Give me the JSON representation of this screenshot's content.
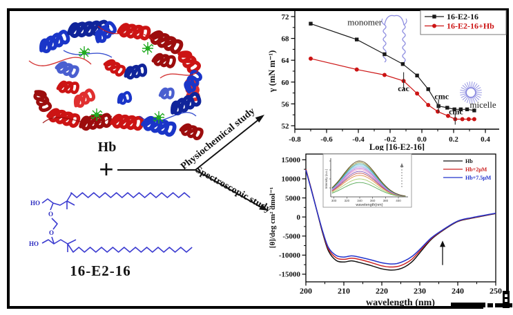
{
  "figure": {
    "hb_label": "Hb",
    "plus": "+",
    "surfactant_label": "16-E2-16",
    "arrow_top_label": "Physiochemical study",
    "arrow_bottom_label": "Spectroscopic study",
    "structure_labels": {
      "ho_top": "HO",
      "o_top": "O",
      "o_bottom": "O",
      "ho_bottom": "HO"
    },
    "colors": {
      "protein_red": "#cc1414",
      "protein_blue": "#1a35c8",
      "heme_green": "#1faa1f",
      "structure_blue": "#3b3bd0"
    }
  },
  "chart_data": [
    {
      "id": "surface-tension-plot",
      "type": "line",
      "xlabel": "Log [16-E2-16]",
      "ylabel": "γ (mN m⁻¹)",
      "xlim": [
        -0.8,
        0.45
      ],
      "ylim": [
        51.5,
        73
      ],
      "xticks": [
        -0.8,
        -0.6,
        -0.4,
        -0.2,
        0.0,
        0.2,
        0.4
      ],
      "yticks": [
        52,
        56,
        60,
        64,
        68,
        72
      ],
      "grid": false,
      "legend_position": "top-right",
      "series": [
        {
          "name": "16-E2-16",
          "color": "#1a1a1a",
          "marker": "square",
          "x": [
            -0.7,
            -0.41,
            -0.235,
            -0.12,
            -0.03,
            0.04,
            0.105,
            0.16,
            0.205,
            0.245,
            0.285,
            0.33
          ],
          "y": [
            70.7,
            67.8,
            65.1,
            63.3,
            61.2,
            58.7,
            55.6,
            55.3,
            55.0,
            55.0,
            55.0,
            54.8
          ]
        },
        {
          "name": "16-E2-16+Hb",
          "color": "#cc1414",
          "marker": "circle",
          "x": [
            -0.7,
            -0.41,
            -0.235,
            -0.115,
            -0.03,
            0.04,
            0.1,
            0.165,
            0.21,
            0.255,
            0.295,
            0.33
          ],
          "y": [
            64.3,
            62.3,
            61.3,
            60.2,
            57.9,
            55.8,
            54.6,
            53.8,
            53.2,
            53.2,
            53.2,
            53.2
          ]
        }
      ],
      "error_bars": [
        {
          "x": -0.115,
          "y": 60.2,
          "h": 1.6
        },
        {
          "x": 0.105,
          "y": 55.6,
          "h": 1.2
        },
        {
          "x": 0.21,
          "y": 53.2,
          "h": 1.0
        }
      ],
      "annotations": [
        {
          "text": "monomer",
          "x": -0.36,
          "y": 70.4,
          "bold": false
        },
        {
          "text": "cac",
          "x": -0.115,
          "y": 58.3,
          "bold": true
        },
        {
          "text": "cmc",
          "x": 0.125,
          "y": 56.9,
          "bold": true
        },
        {
          "text": "cmc",
          "x": 0.215,
          "y": 54.1,
          "bold": true
        },
        {
          "text": "micelle",
          "x": 0.385,
          "y": 55.3,
          "bold": false
        }
      ]
    },
    {
      "id": "cd-spectra-plot",
      "type": "line",
      "xlabel": "wavelength (nm)",
      "ylabel": "[θ]/deg cm² dmol⁻¹",
      "xlim": [
        200,
        250
      ],
      "ylim": [
        -17000,
        16500
      ],
      "xticks": [
        200,
        210,
        220,
        230,
        240,
        250
      ],
      "yticks": [
        15000,
        10000,
        5000,
        0,
        -5000,
        -10000,
        -15000
      ],
      "grid": false,
      "x": [
        200,
        201.5,
        203,
        204.5,
        206,
        208,
        210,
        212,
        214,
        217,
        220,
        222,
        224,
        226,
        228,
        230,
        233,
        236,
        240,
        244,
        250
      ],
      "series": [
        {
          "name": "Hb",
          "color": "#111111",
          "y": [
            12500,
            7000,
            1200,
            -4500,
            -9000,
            -11400,
            -11800,
            -11500,
            -11900,
            -12700,
            -13600,
            -13900,
            -13800,
            -13100,
            -11700,
            -9400,
            -5900,
            -3600,
            -1200,
            -250,
            900
          ]
        },
        {
          "name": "Hb+2μM",
          "color": "#cc2222",
          "y": [
            12500,
            6900,
            1300,
            -4200,
            -8500,
            -10700,
            -11100,
            -10800,
            -11100,
            -11900,
            -12800,
            -13100,
            -13000,
            -12300,
            -11000,
            -8900,
            -5700,
            -3500,
            -1100,
            -200,
            950
          ]
        },
        {
          "name": "Hb+7.5μM",
          "color": "#2233cc",
          "y": [
            12300,
            6800,
            1300,
            -4000,
            -8100,
            -10100,
            -10500,
            -10200,
            -10500,
            -11200,
            -12000,
            -12300,
            -12200,
            -11500,
            -10300,
            -8500,
            -5500,
            -3400,
            -1050,
            -100,
            1000
          ]
        }
      ],
      "arrow": {
        "x": 236,
        "y_from": -12600,
        "y_to": -6200
      },
      "inset": {
        "type": "line",
        "xlabel": "wavelength(nm)",
        "ylabel": "Intensity (a.u.)",
        "xticks": [
          300,
          320,
          340,
          360,
          380,
          400
        ],
        "peak_wavelength": 340,
        "sigma": 26,
        "x_range": [
          297,
          412
        ],
        "peaks_rel": [
          100,
          96,
          92,
          88,
          84,
          80,
          76,
          71,
          66,
          60,
          50,
          40
        ],
        "colors": [
          "#5b4a22",
          "#8a8a30",
          "#2f9e9e",
          "#74c3e8",
          "#9a9ade",
          "#c06ad0",
          "#e8a2d2",
          "#8455b8",
          "#c05555",
          "#e08a40",
          "#a8cc70",
          "#55a855"
        ]
      }
    }
  ]
}
